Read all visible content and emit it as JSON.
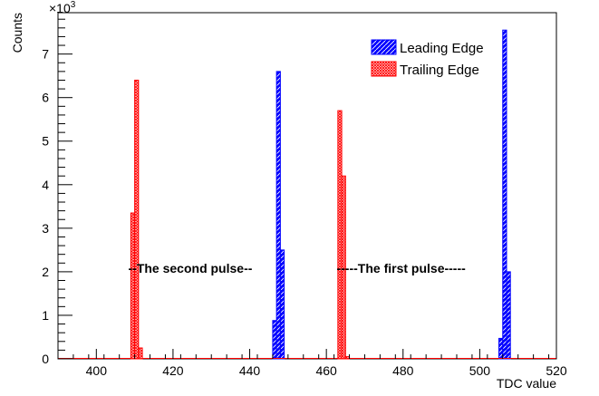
{
  "chart_data": {
    "type": "bar",
    "title": "",
    "xlabel": "TDC value",
    "ylabel": "Counts",
    "y_multiplier": "×10",
    "y_multiplier_exp": "3",
    "xlim": [
      390,
      520
    ],
    "ylim": [
      0,
      7.95
    ],
    "x_ticks": [
      400,
      420,
      440,
      460,
      480,
      500,
      520
    ],
    "y_ticks": [
      0,
      1,
      2,
      3,
      4,
      5,
      6,
      7
    ],
    "bin_width": 1,
    "grid": false,
    "legend_position": "top-right",
    "series": [
      {
        "name": "Leading Edge",
        "color": "#0000ff",
        "hatch": "diagonal",
        "bins": [
          {
            "x": 446.5,
            "y": 0.88
          },
          {
            "x": 447.5,
            "y": 6.6
          },
          {
            "x": 448.5,
            "y": 2.5
          },
          {
            "x": 505.5,
            "y": 0.47
          },
          {
            "x": 506.5,
            "y": 7.55
          },
          {
            "x": 507.5,
            "y": 2.0
          }
        ]
      },
      {
        "name": "Trailing Edge",
        "color": "#ff0000",
        "hatch": "crosshatch",
        "bins": [
          {
            "x": 409.5,
            "y": 3.35
          },
          {
            "x": 410.5,
            "y": 6.4
          },
          {
            "x": 411.5,
            "y": 0.25
          },
          {
            "x": 463.5,
            "y": 5.7
          },
          {
            "x": 464.5,
            "y": 4.2
          },
          {
            "x": 465.5,
            "y": 0.05
          }
        ]
      }
    ],
    "annotations": [
      {
        "text": "--The second pulse--",
        "x": 424.5,
        "y": 2.08
      },
      {
        "text": "-----The first pulse-----",
        "x": 479.5,
        "y": 2.08
      }
    ]
  }
}
